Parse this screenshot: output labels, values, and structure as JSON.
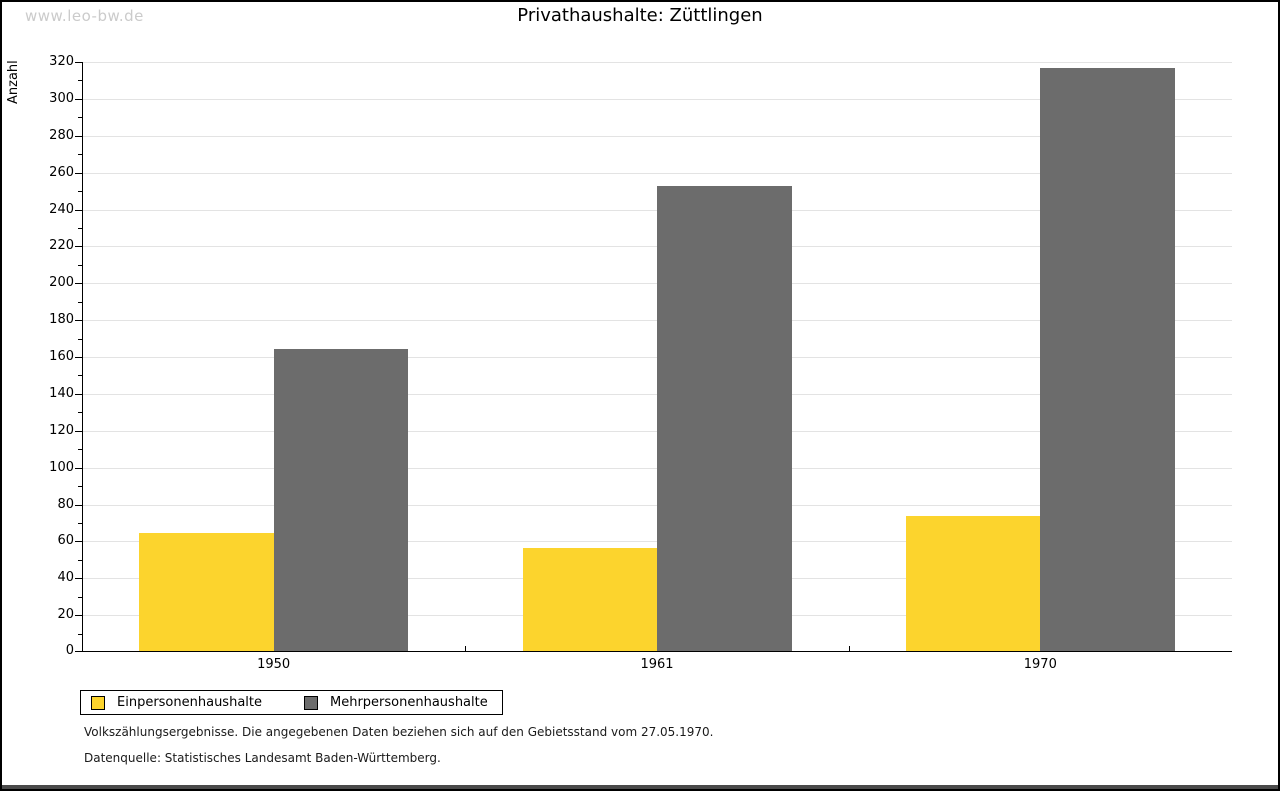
{
  "watermark": "www.leo-bw.de",
  "chart_data": {
    "type": "bar",
    "title": "Privathaushalte: Züttlingen",
    "ylabel": "Anzahl",
    "xlabel": "",
    "categories": [
      "1950",
      "1961",
      "1970"
    ],
    "series": [
      {
        "name": "Einpersonenhaushalte",
        "color": "#FCD42D",
        "values": [
          64,
          56,
          73
        ]
      },
      {
        "name": "Mehrpersonenhaushalte",
        "color": "#6C6C6C",
        "values": [
          164,
          252,
          316
        ]
      }
    ],
    "ylim": [
      0,
      320
    ],
    "ytick_step": 20,
    "minor_tick_step": 10,
    "grid": true,
    "legend_position": "bottom-left"
  },
  "footer": {
    "note": "Volkszählungsergebnisse. Die angegebenen Daten beziehen sich auf den Gebietsstand vom 27.05.1970.",
    "source": "Datenquelle: Statistisches Landesamt Baden-Württemberg."
  },
  "colors": {
    "grid": "#E3E3E3",
    "axis": "#000000",
    "watermark": "#CBCBCB",
    "background": "#FFFFFF",
    "bottom_strip": "#4A4A4A"
  }
}
